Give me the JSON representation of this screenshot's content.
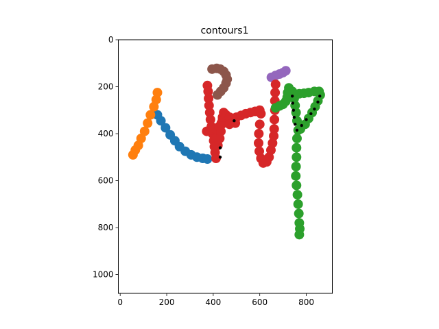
{
  "chart_data": {
    "type": "scatter",
    "title": "contours1",
    "xlabel": "",
    "ylabel": "",
    "xlim": [
      -8,
      912
    ],
    "ylim": [
      1080,
      0
    ],
    "y_inverted": true,
    "grid": false,
    "legend": "none",
    "x_ticks": [
      0,
      200,
      400,
      600,
      800
    ],
    "y_ticks": [
      0,
      200,
      400,
      600,
      800,
      1000
    ],
    "series": [
      {
        "color": "#1f77b4",
        "points": [
          [
            160,
            320
          ],
          [
            175,
            345
          ],
          [
            195,
            375
          ],
          [
            215,
            405
          ],
          [
            235,
            430
          ],
          [
            255,
            455
          ],
          [
            280,
            475
          ],
          [
            305,
            490
          ],
          [
            330,
            500
          ],
          [
            355,
            505
          ],
          [
            375,
            508
          ]
        ]
      },
      {
        "color": "#ff7f0e",
        "points": [
          [
            160,
            225
          ],
          [
            155,
            255
          ],
          [
            145,
            285
          ],
          [
            130,
            320
          ],
          [
            118,
            355
          ],
          [
            105,
            390
          ],
          [
            90,
            420
          ],
          [
            78,
            450
          ],
          [
            65,
            470
          ],
          [
            55,
            490
          ]
        ]
      },
      {
        "color": "#8c564b",
        "points": [
          [
            395,
            125
          ],
          [
            415,
            122
          ],
          [
            430,
            125
          ],
          [
            445,
            135
          ],
          [
            455,
            150
          ],
          [
            460,
            168
          ],
          [
            455,
            185
          ],
          [
            445,
            205
          ],
          [
            432,
            220
          ],
          [
            418,
            235
          ]
        ]
      },
      {
        "color": "#9467bd",
        "points": [
          [
            650,
            160
          ],
          [
            668,
            152
          ],
          [
            685,
            146
          ],
          [
            700,
            140
          ],
          [
            712,
            132
          ]
        ]
      },
      {
        "color": "#d62728",
        "points": [
          [
            375,
            195
          ],
          [
            378,
            220
          ],
          [
            380,
            250
          ],
          [
            382,
            280
          ],
          [
            385,
            310
          ],
          [
            388,
            340
          ],
          [
            392,
            370
          ],
          [
            397,
            400
          ],
          [
            402,
            430
          ],
          [
            405,
            455
          ],
          [
            408,
            480
          ],
          [
            412,
            505
          ],
          [
            372,
            390
          ],
          [
            392,
            385
          ],
          [
            410,
            380
          ],
          [
            425,
            370
          ],
          [
            435,
            355
          ],
          [
            440,
            340
          ],
          [
            420,
            450
          ],
          [
            428,
            420
          ],
          [
            433,
            390
          ],
          [
            437,
            360
          ],
          [
            440,
            330
          ],
          [
            445,
            310
          ],
          [
            455,
            320
          ],
          [
            470,
            330
          ],
          [
            485,
            335
          ],
          [
            500,
            330
          ],
          [
            520,
            322
          ],
          [
            540,
            315
          ],
          [
            560,
            310
          ],
          [
            580,
            305
          ],
          [
            600,
            300
          ],
          [
            470,
            360
          ],
          [
            495,
            355
          ],
          [
            605,
            315
          ],
          [
            600,
            360
          ],
          [
            596,
            400
          ],
          [
            595,
            440
          ],
          [
            598,
            475
          ],
          [
            605,
            505
          ],
          [
            615,
            525
          ],
          [
            630,
            520
          ],
          [
            640,
            500
          ],
          [
            648,
            470
          ],
          [
            655,
            440
          ],
          [
            660,
            410
          ],
          [
            662,
            380
          ],
          [
            663,
            340
          ],
          [
            665,
            300
          ],
          [
            665,
            260
          ],
          [
            666,
            225
          ],
          [
            668,
            190
          ]
        ]
      },
      {
        "color": "#2ca02c",
        "points": [
          [
            668,
            290
          ],
          [
            685,
            282
          ],
          [
            700,
            275
          ],
          [
            712,
            262
          ],
          [
            718,
            245
          ],
          [
            720,
            225
          ],
          [
            725,
            205
          ],
          [
            740,
            220
          ],
          [
            748,
            250
          ],
          [
            752,
            280
          ],
          [
            756,
            310
          ],
          [
            760,
            345
          ],
          [
            765,
            385
          ],
          [
            760,
            420
          ],
          [
            758,
            460
          ],
          [
            758,
            500
          ],
          [
            756,
            540
          ],
          [
            755,
            580
          ],
          [
            758,
            620
          ],
          [
            762,
            660
          ],
          [
            765,
            700
          ],
          [
            768,
            740
          ],
          [
            770,
            780
          ],
          [
            772,
            805
          ],
          [
            770,
            830
          ],
          [
            775,
            380
          ],
          [
            795,
            360
          ],
          [
            810,
            335
          ],
          [
            825,
            310
          ],
          [
            838,
            285
          ],
          [
            850,
            260
          ],
          [
            860,
            235
          ],
          [
            855,
            220
          ],
          [
            835,
            220
          ],
          [
            810,
            225
          ],
          [
            790,
            228
          ],
          [
            770,
            230
          ],
          [
            750,
            232
          ]
        ]
      },
      {
        "color": "#000000",
        "points": [
          [
            740,
            240
          ],
          [
            742,
            270
          ],
          [
            745,
            300
          ],
          [
            748,
            330
          ],
          [
            752,
            360
          ],
          [
            760,
            385
          ],
          [
            780,
            365
          ],
          [
            800,
            340
          ],
          [
            820,
            315
          ],
          [
            835,
            295
          ],
          [
            850,
            265
          ],
          [
            858,
            240
          ],
          [
            430,
            500
          ],
          [
            430,
            460
          ],
          [
            490,
            345
          ]
        ]
      }
    ]
  }
}
